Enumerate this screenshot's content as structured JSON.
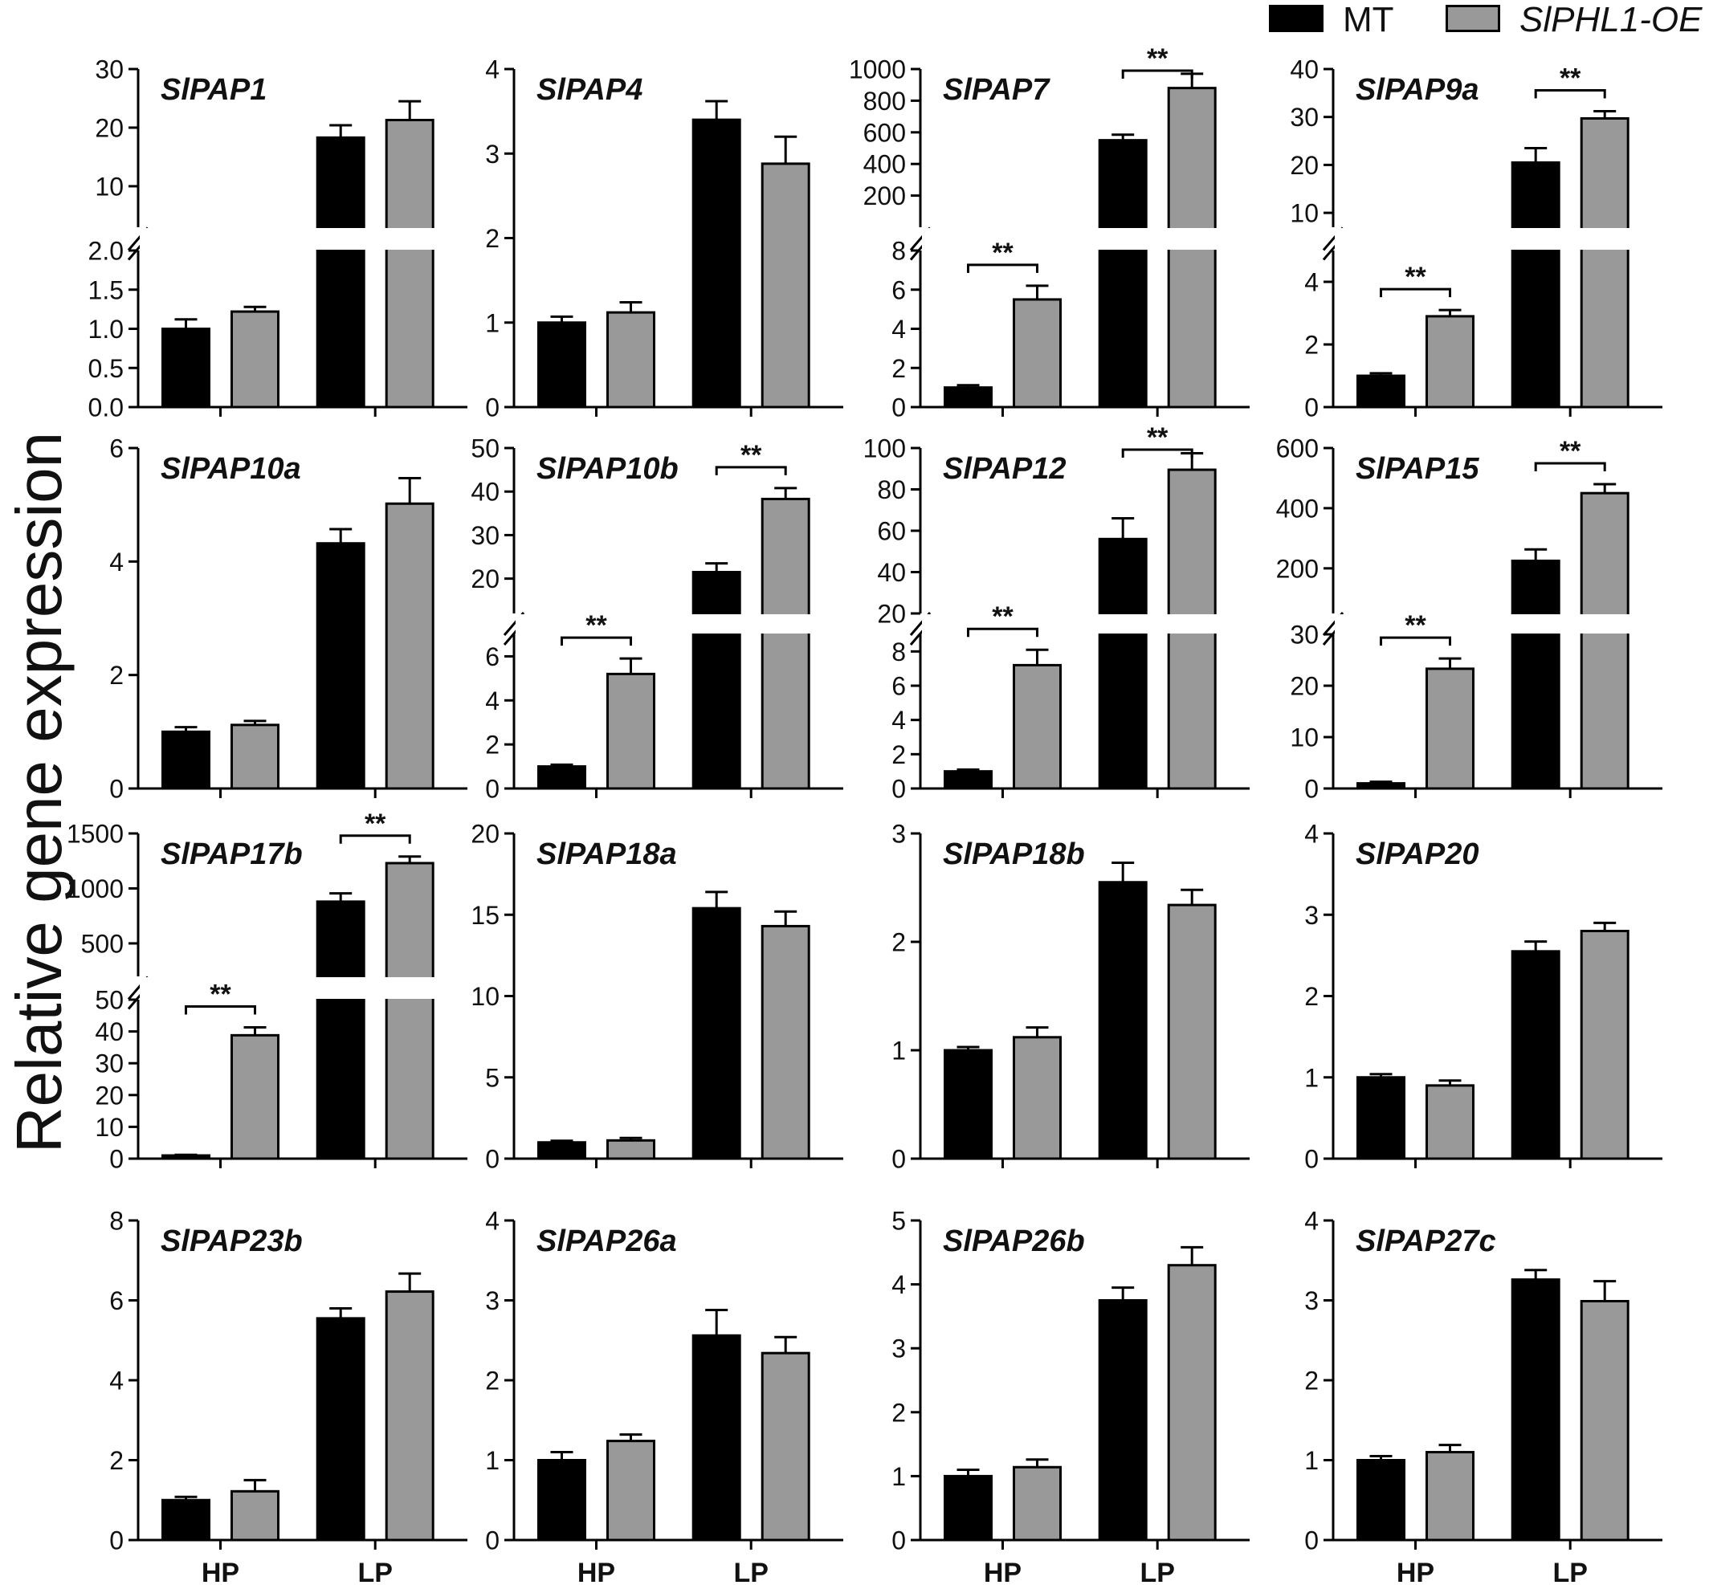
{
  "figure": {
    "ylabel": "Relative gene expression",
    "legend": [
      {
        "label": "MT",
        "color": "#000000",
        "italic": false
      },
      {
        "label": "SlPHL1-OE",
        "color": "#999999",
        "italic": true
      }
    ],
    "colors": {
      "MT": "#000000",
      "OE": "#999999",
      "axis": "#000000"
    }
  },
  "chart_data": [
    {
      "type": "bar",
      "title": "SlPAP1",
      "categories": [
        "HP",
        "LP"
      ],
      "xticklabels_shown": false,
      "series": [
        {
          "name": "MT",
          "values": [
            1.0,
            18.3
          ],
          "errors": [
            0.12,
            2.1
          ]
        },
        {
          "name": "SlPHL1-OE",
          "values": [
            1.22,
            21.3
          ],
          "errors": [
            0.06,
            3.2
          ]
        }
      ],
      "broken_axis": {
        "lower": {
          "range": [
            0,
            2.0
          ],
          "ticks": [
            "0.0",
            "0.5",
            "1.0",
            "1.5",
            "2.0"
          ]
        },
        "upper": {
          "range": [
            3,
            30
          ],
          "ticks": [
            "10",
            "20",
            "30"
          ]
        }
      },
      "significance": []
    },
    {
      "type": "bar",
      "title": "SlPAP4",
      "categories": [
        "HP",
        "LP"
      ],
      "xticklabels_shown": false,
      "series": [
        {
          "name": "MT",
          "values": [
            1.0,
            3.4
          ],
          "errors": [
            0.07,
            0.22
          ]
        },
        {
          "name": "SlPHL1-OE",
          "values": [
            1.12,
            2.88
          ],
          "errors": [
            0.12,
            0.32
          ]
        }
      ],
      "ylim": [
        0,
        4
      ],
      "yticks": [
        "0",
        "1",
        "2",
        "3",
        "4"
      ],
      "significance": []
    },
    {
      "type": "bar",
      "title": "SlPAP7",
      "categories": [
        "HP",
        "LP"
      ],
      "xticklabels_shown": false,
      "series": [
        {
          "name": "MT",
          "values": [
            1.0,
            550
          ],
          "errors": [
            0.12,
            35
          ]
        },
        {
          "name": "SlPHL1-OE",
          "values": [
            5.5,
            880
          ],
          "errors": [
            0.7,
            90
          ]
        }
      ],
      "broken_axis": {
        "lower": {
          "range": [
            0,
            8
          ],
          "ticks": [
            "0",
            "2",
            "4",
            "6",
            "8"
          ]
        },
        "upper": {
          "range": [
            0,
            1000
          ],
          "ticks": [
            "200",
            "400",
            "600",
            "800",
            "1000"
          ]
        }
      },
      "significance": [
        {
          "category": "HP",
          "label": "**"
        },
        {
          "category": "LP",
          "label": "**"
        }
      ]
    },
    {
      "type": "bar",
      "title": "SlPAP9a",
      "categories": [
        "HP",
        "LP"
      ],
      "xticklabels_shown": false,
      "series": [
        {
          "name": "MT",
          "values": [
            1.0,
            20.5
          ],
          "errors": [
            0.08,
            3.0
          ]
        },
        {
          "name": "SlPHL1-OE",
          "values": [
            2.9,
            29.7
          ],
          "errors": [
            0.2,
            1.5
          ]
        }
      ],
      "broken_axis": {
        "lower": {
          "range": [
            0,
            5
          ],
          "ticks": [
            "0",
            "2",
            "4"
          ]
        },
        "upper": {
          "range": [
            7,
            40
          ],
          "ticks": [
            "10",
            "20",
            "30",
            "40"
          ]
        }
      },
      "significance": [
        {
          "category": "HP",
          "label": "**"
        },
        {
          "category": "LP",
          "label": "**"
        }
      ]
    },
    {
      "type": "bar",
      "title": "SlPAP10a",
      "categories": [
        "HP",
        "LP"
      ],
      "xticklabels_shown": false,
      "series": [
        {
          "name": "MT",
          "values": [
            1.0,
            4.32
          ],
          "errors": [
            0.08,
            0.25
          ]
        },
        {
          "name": "SlPHL1-OE",
          "values": [
            1.12,
            5.02
          ],
          "errors": [
            0.07,
            0.45
          ]
        }
      ],
      "ylim": [
        0,
        6
      ],
      "yticks": [
        "0",
        "2",
        "4",
        "6"
      ],
      "significance": []
    },
    {
      "type": "bar",
      "title": "SlPAP10b",
      "categories": [
        "HP",
        "LP"
      ],
      "xticklabels_shown": false,
      "series": [
        {
          "name": "MT",
          "values": [
            1.0,
            21.5
          ],
          "errors": [
            0.08,
            2.0
          ]
        },
        {
          "name": "SlPHL1-OE",
          "values": [
            5.2,
            38.3
          ],
          "errors": [
            0.7,
            2.5
          ]
        }
      ],
      "broken_axis": {
        "lower": {
          "range": [
            0,
            7
          ],
          "ticks": [
            "0",
            "2",
            "4",
            "6"
          ]
        },
        "upper": {
          "range": [
            12,
            50
          ],
          "ticks": [
            "20",
            "30",
            "40",
            "50"
          ]
        }
      },
      "significance": [
        {
          "category": "HP",
          "label": "**"
        },
        {
          "category": "LP",
          "label": "**"
        }
      ]
    },
    {
      "type": "bar",
      "title": "SlPAP12",
      "categories": [
        "HP",
        "LP"
      ],
      "xticklabels_shown": false,
      "series": [
        {
          "name": "MT",
          "values": [
            1.0,
            56
          ],
          "errors": [
            0.1,
            10
          ]
        },
        {
          "name": "SlPHL1-OE",
          "values": [
            7.2,
            89.5
          ],
          "errors": [
            0.9,
            8
          ]
        }
      ],
      "broken_axis": {
        "lower": {
          "range": [
            0,
            9
          ],
          "ticks": [
            "0",
            "2",
            "4",
            "6",
            "8"
          ]
        },
        "upper": {
          "range": [
            20,
            100
          ],
          "ticks": [
            "20",
            "40",
            "60",
            "80",
            "100"
          ]
        }
      },
      "significance": [
        {
          "category": "HP",
          "label": "**"
        },
        {
          "category": "LP",
          "label": "**"
        }
      ]
    },
    {
      "type": "bar",
      "title": "SlPAP15",
      "categories": [
        "HP",
        "LP"
      ],
      "xticklabels_shown": false,
      "series": [
        {
          "name": "MT",
          "values": [
            1.0,
            225
          ],
          "errors": [
            0.3,
            38
          ]
        },
        {
          "name": "SlPHL1-OE",
          "values": [
            23.3,
            450
          ],
          "errors": [
            2.0,
            30
          ]
        }
      ],
      "broken_axis": {
        "lower": {
          "range": [
            0,
            30
          ],
          "ticks": [
            "0",
            "10",
            "20",
            "30"
          ]
        },
        "upper": {
          "range": [
            50,
            600
          ],
          "ticks": [
            "200",
            "400",
            "600"
          ]
        }
      },
      "significance": [
        {
          "category": "HP",
          "label": "**"
        },
        {
          "category": "LP",
          "label": "**"
        }
      ]
    },
    {
      "type": "bar",
      "title": "SlPAP17b",
      "categories": [
        "HP",
        "LP"
      ],
      "xticklabels_shown": false,
      "series": [
        {
          "name": "MT",
          "values": [
            1.0,
            880
          ],
          "errors": [
            0.2,
            75
          ]
        },
        {
          "name": "SlPHL1-OE",
          "values": [
            38.8,
            1230
          ],
          "errors": [
            2.5,
            60
          ]
        }
      ],
      "broken_axis": {
        "lower": {
          "range": [
            0,
            50
          ],
          "ticks": [
            "0",
            "10",
            "20",
            "30",
            "40",
            "50"
          ]
        },
        "upper": {
          "range": [
            200,
            1500
          ],
          "ticks": [
            "500",
            "1000",
            "1500"
          ]
        }
      },
      "significance": [
        {
          "category": "HP",
          "label": "**"
        },
        {
          "category": "LP",
          "label": "**"
        }
      ]
    },
    {
      "type": "bar",
      "title": "SlPAP18a",
      "categories": [
        "HP",
        "LP"
      ],
      "xticklabels_shown": false,
      "series": [
        {
          "name": "MT",
          "values": [
            1.0,
            15.4
          ],
          "errors": [
            0.1,
            1.0
          ]
        },
        {
          "name": "SlPHL1-OE",
          "values": [
            1.12,
            14.3
          ],
          "errors": [
            0.15,
            0.9
          ]
        }
      ],
      "ylim": [
        0,
        20
      ],
      "yticks": [
        "0",
        "5",
        "10",
        "15",
        "20"
      ],
      "significance": []
    },
    {
      "type": "bar",
      "title": "SlPAP18b",
      "categories": [
        "HP",
        "LP"
      ],
      "xticklabels_shown": false,
      "series": [
        {
          "name": "MT",
          "values": [
            1.0,
            2.55
          ],
          "errors": [
            0.03,
            0.18
          ]
        },
        {
          "name": "SlPHL1-OE",
          "values": [
            1.12,
            2.34
          ],
          "errors": [
            0.09,
            0.14
          ]
        }
      ],
      "ylim": [
        0,
        3
      ],
      "yticks": [
        "0",
        "1",
        "2",
        "3"
      ],
      "significance": []
    },
    {
      "type": "bar",
      "title": "SlPAP20",
      "categories": [
        "HP",
        "LP"
      ],
      "xticklabels_shown": false,
      "series": [
        {
          "name": "MT",
          "values": [
            1.0,
            2.55
          ],
          "errors": [
            0.04,
            0.12
          ]
        },
        {
          "name": "SlPHL1-OE",
          "values": [
            0.9,
            2.8
          ],
          "errors": [
            0.06,
            0.1
          ]
        }
      ],
      "ylim": [
        0,
        4
      ],
      "yticks": [
        "0",
        "1",
        "2",
        "3",
        "4"
      ],
      "significance": []
    },
    {
      "type": "bar",
      "title": "SlPAP23b",
      "categories": [
        "HP",
        "LP"
      ],
      "xticklabels_shown": true,
      "series": [
        {
          "name": "MT",
          "values": [
            1.0,
            5.55
          ],
          "errors": [
            0.08,
            0.25
          ]
        },
        {
          "name": "SlPHL1-OE",
          "values": [
            1.22,
            6.22
          ],
          "errors": [
            0.28,
            0.45
          ]
        }
      ],
      "ylim": [
        0,
        8
      ],
      "yticks": [
        "0",
        "2",
        "4",
        "6",
        "8"
      ],
      "significance": []
    },
    {
      "type": "bar",
      "title": "SlPAP26a",
      "categories": [
        "HP",
        "LP"
      ],
      "xticklabels_shown": true,
      "series": [
        {
          "name": "MT",
          "values": [
            1.0,
            2.56
          ],
          "errors": [
            0.1,
            0.32
          ]
        },
        {
          "name": "SlPHL1-OE",
          "values": [
            1.24,
            2.34
          ],
          "errors": [
            0.08,
            0.2
          ]
        }
      ],
      "ylim": [
        0,
        4
      ],
      "yticks": [
        "0",
        "1",
        "2",
        "3",
        "4"
      ],
      "significance": []
    },
    {
      "type": "bar",
      "title": "SlPAP26b",
      "categories": [
        "HP",
        "LP"
      ],
      "xticklabels_shown": true,
      "series": [
        {
          "name": "MT",
          "values": [
            1.0,
            3.75
          ],
          "errors": [
            0.1,
            0.2
          ]
        },
        {
          "name": "SlPHL1-OE",
          "values": [
            1.14,
            4.3
          ],
          "errors": [
            0.12,
            0.28
          ]
        }
      ],
      "ylim": [
        0,
        5
      ],
      "yticks": [
        "0",
        "1",
        "2",
        "3",
        "4",
        "5"
      ],
      "significance": []
    },
    {
      "type": "bar",
      "title": "SlPAP27c",
      "categories": [
        "HP",
        "LP"
      ],
      "xticklabels_shown": true,
      "series": [
        {
          "name": "MT",
          "values": [
            1.0,
            3.26
          ],
          "errors": [
            0.05,
            0.12
          ]
        },
        {
          "name": "SlPHL1-OE",
          "values": [
            1.1,
            2.99
          ],
          "errors": [
            0.09,
            0.25
          ]
        }
      ],
      "ylim": [
        0,
        4
      ],
      "yticks": [
        "0",
        "1",
        "2",
        "3",
        "4"
      ],
      "significance": []
    }
  ]
}
